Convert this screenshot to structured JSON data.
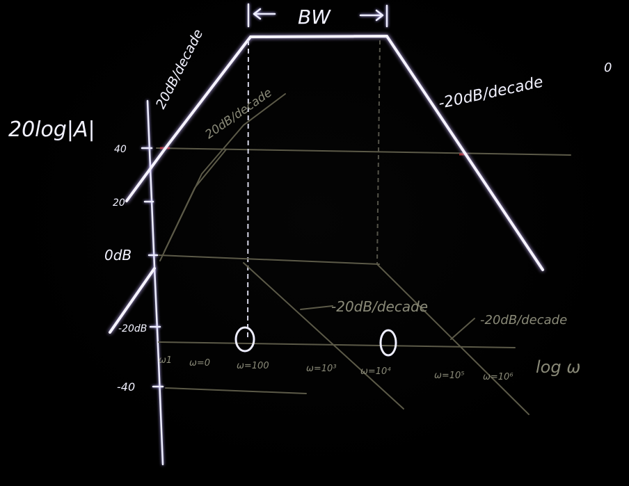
{
  "labels": {
    "y_axis": "20log|A|",
    "bandwidth": "BW",
    "rise_slope": "20dB/decade",
    "fall_slope": "-20dB/decade",
    "fall_mark": "0",
    "inner_rise_slope": "20dB/decade",
    "low_fall_slope_1": "-20dB/decade",
    "low_fall_slope_2": "-20dB/decade",
    "x_axis": "log ω"
  },
  "y_ticks": [
    "40",
    "20",
    "0dB",
    "-20dB",
    "-40"
  ],
  "x_ticks": [
    "ω1",
    "ω=0",
    "ω=100",
    "ω=10³",
    "ω=10⁴",
    "ω=10⁵",
    "ω=10⁶"
  ],
  "zero_markers": [
    "0",
    "0"
  ],
  "colors": {
    "ink": "#f6f4ff",
    "faint_ink": "#5c5a48",
    "glow": "#c9b6ff",
    "accent_red": "#c03030"
  }
}
